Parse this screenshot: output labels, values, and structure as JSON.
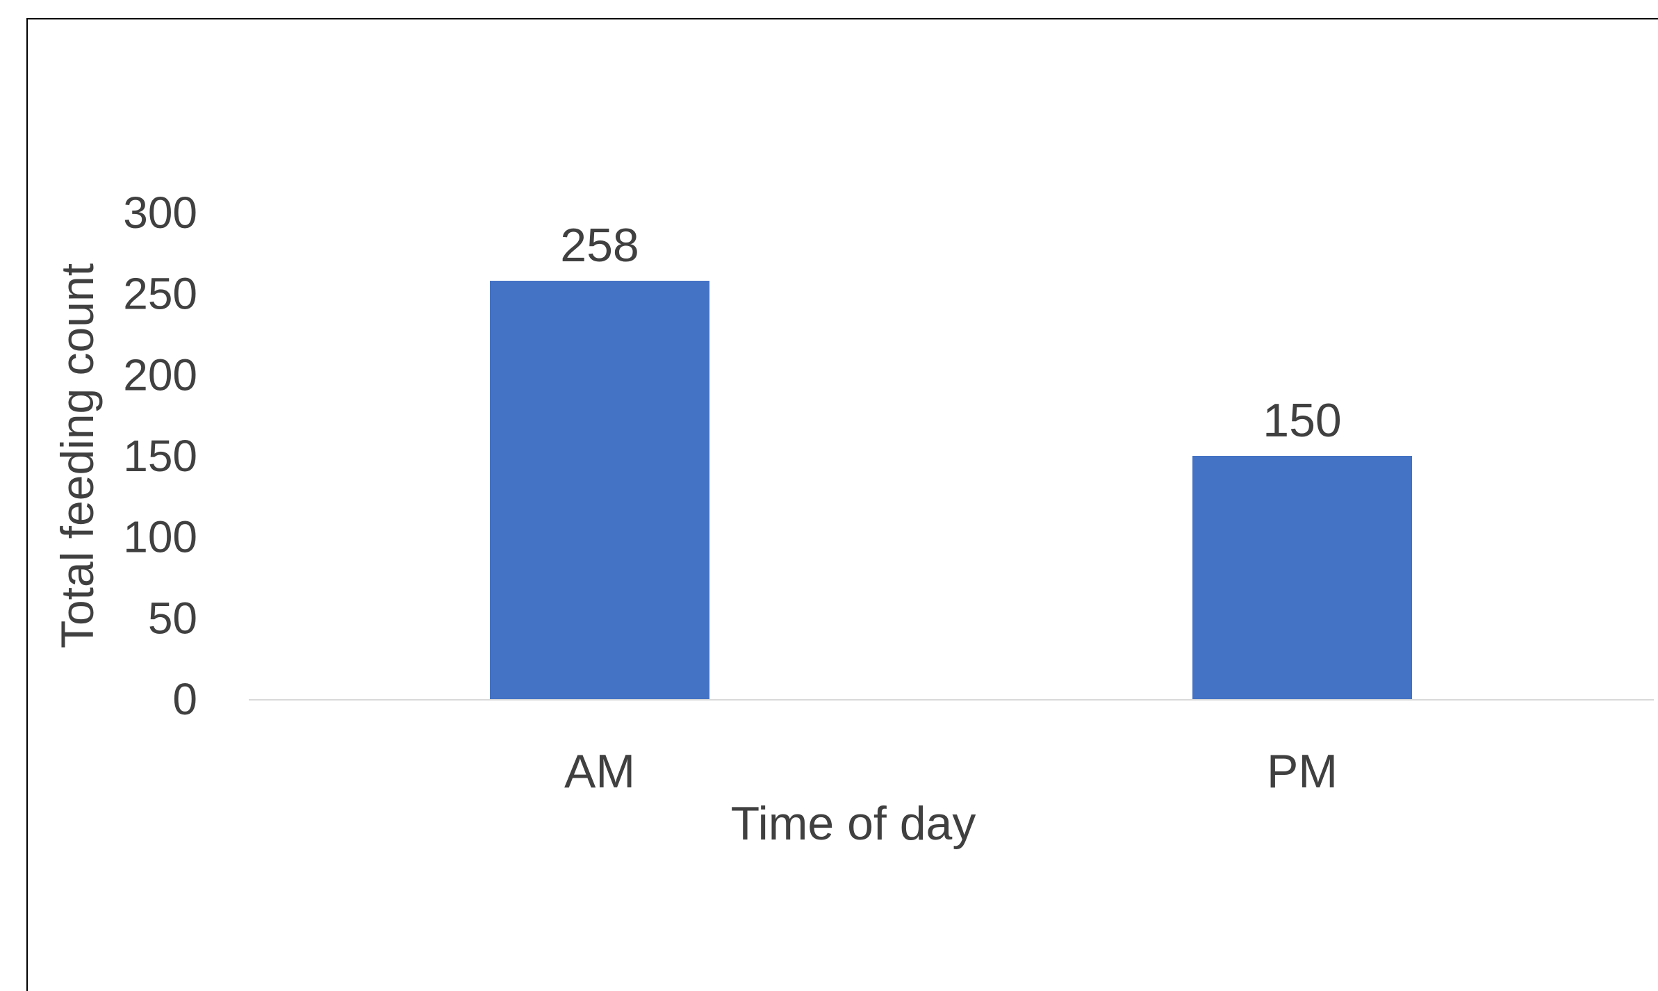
{
  "chart_data": {
    "type": "bar",
    "title": "",
    "xlabel": "Time of day",
    "ylabel": "Total feeding count",
    "categories": [
      "AM",
      "PM"
    ],
    "values": [
      258,
      150
    ],
    "data_labels": [
      "258",
      "150"
    ],
    "ylim": [
      0,
      300
    ],
    "yticks": [
      0,
      50,
      100,
      150,
      200,
      250,
      300
    ],
    "ytick_labels": [
      "0",
      "50",
      "100",
      "150",
      "200",
      "250",
      "300"
    ],
    "grid": false,
    "legend": "none",
    "colors": {
      "bar": "#4472C4",
      "text": "#404040",
      "axis_line": "#D9D9D9",
      "frame": "#000000"
    }
  }
}
